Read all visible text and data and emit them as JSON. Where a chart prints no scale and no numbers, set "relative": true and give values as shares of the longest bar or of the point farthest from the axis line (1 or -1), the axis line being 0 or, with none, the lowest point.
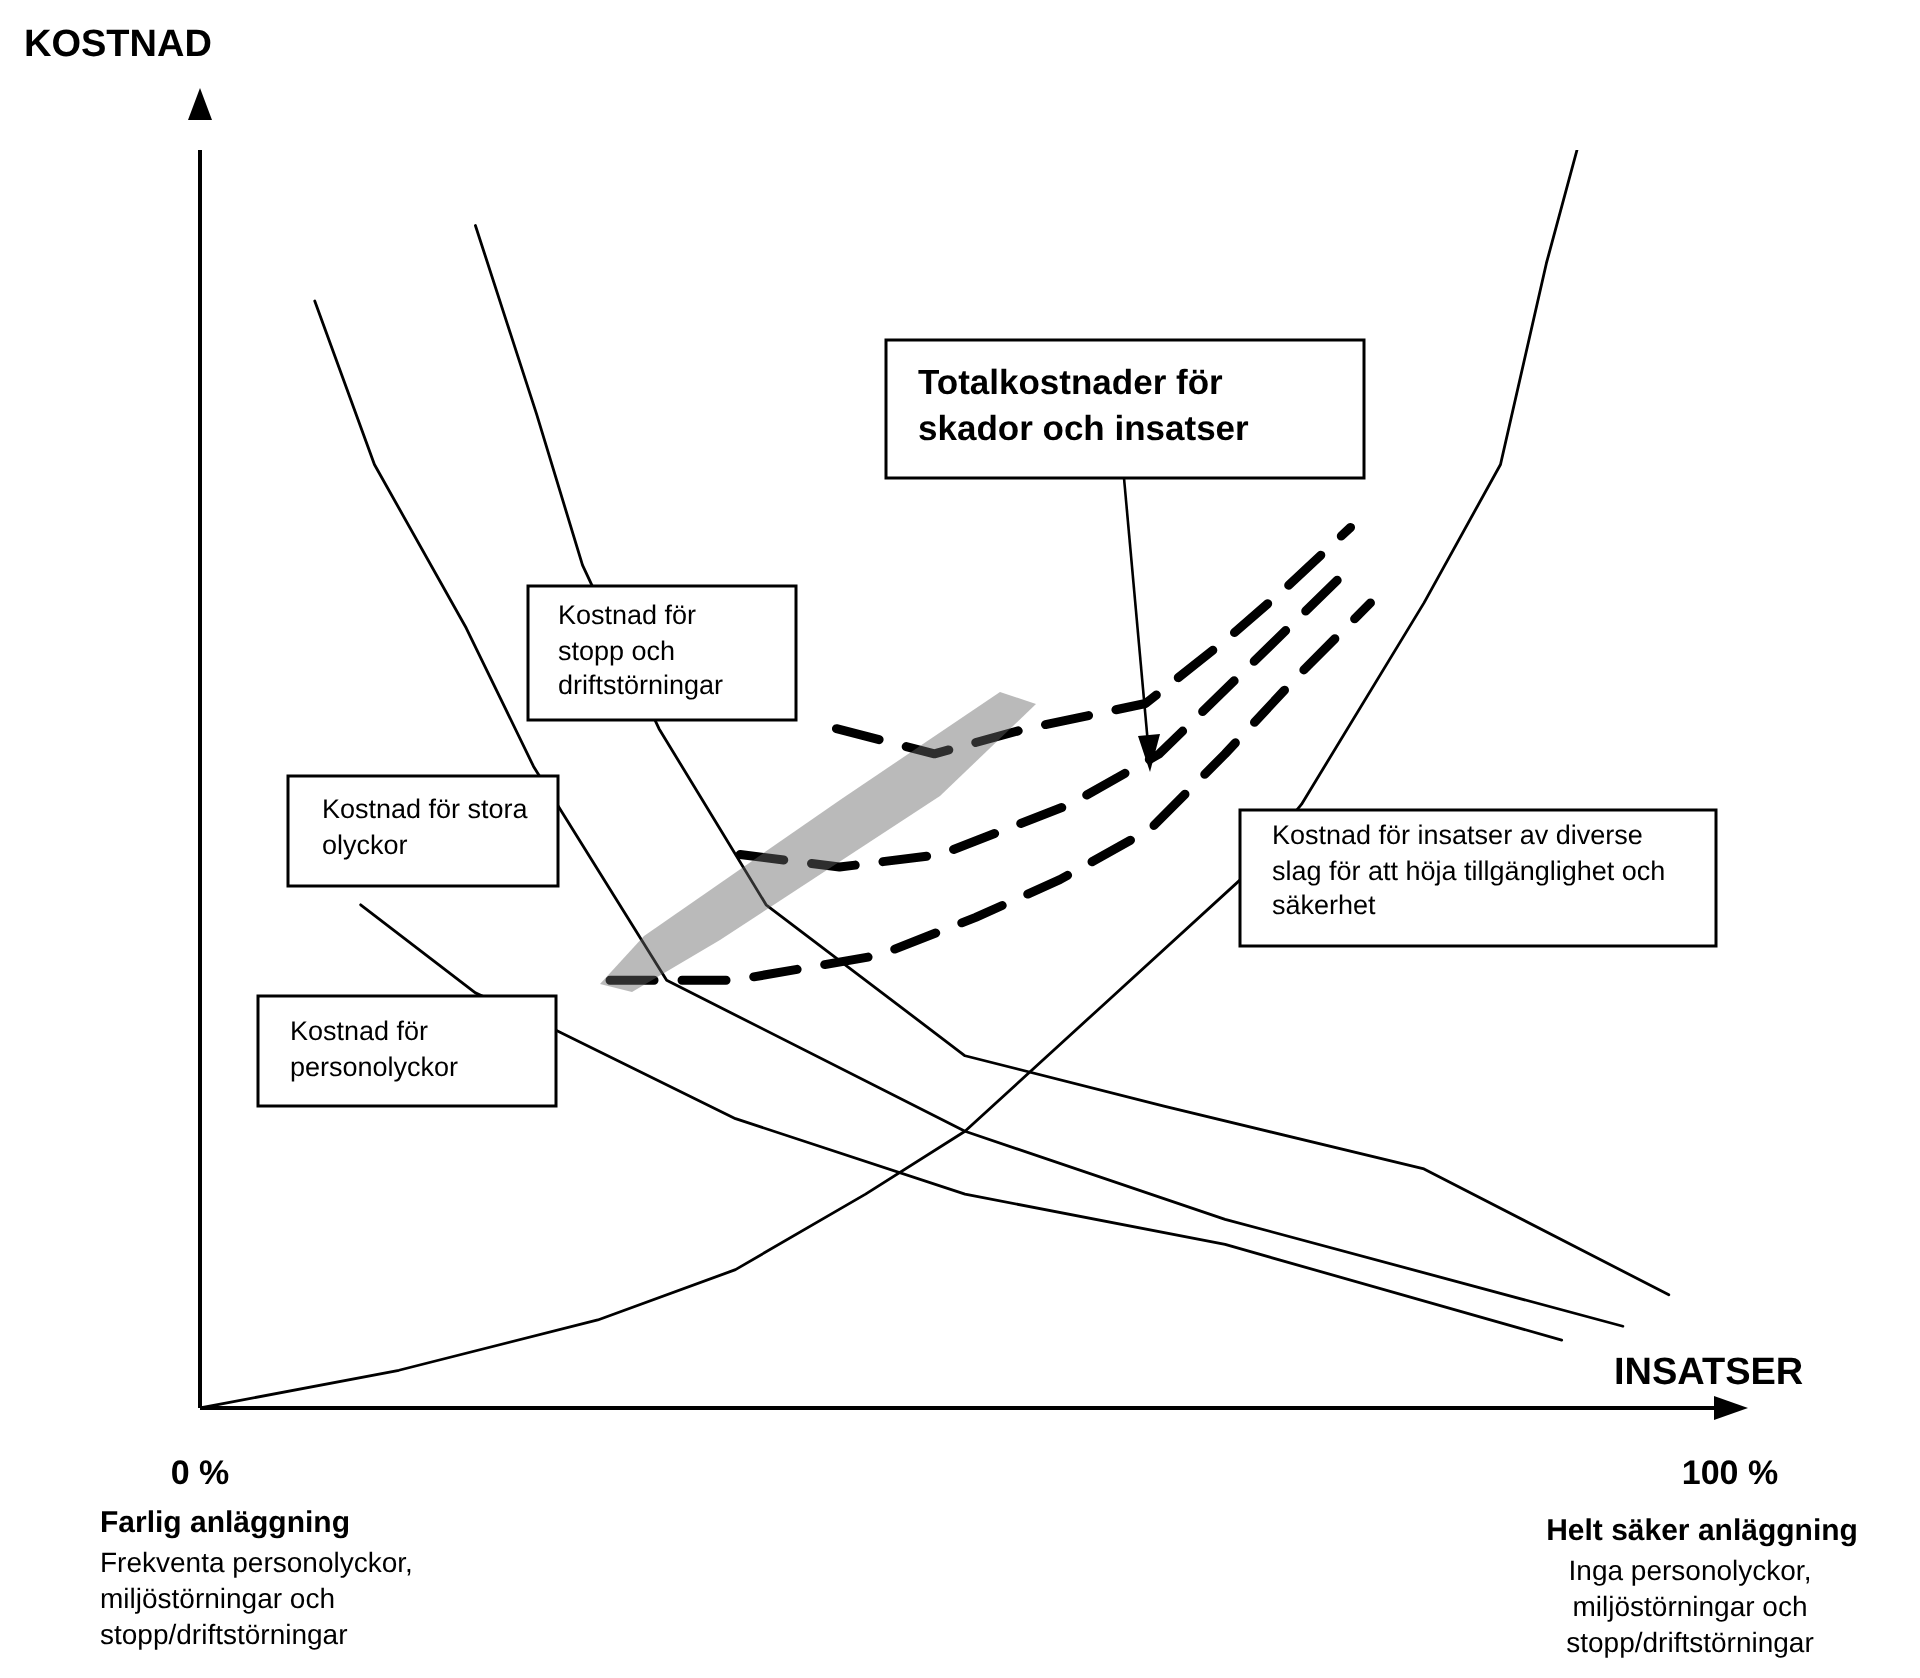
{
  "chart_data": {
    "type": "line",
    "relative": true,
    "xlabel": "INSATSER",
    "ylabel": "KOSTNAD",
    "xlim": [
      0,
      100
    ],
    "xticks": [
      {
        "value": 0,
        "label": "0 %"
      },
      {
        "value": 100,
        "label": "100 %"
      }
    ],
    "grid": false,
    "legend": false,
    "marker": "none",
    "series": [
      {
        "name": "Kostnad för insatser av diverse slag för att höja tillgänglighet och säkerhet",
        "color": "#000000",
        "line_style": "solid",
        "x": [
          0,
          13,
          26,
          35,
          43.5,
          50,
          59,
          68,
          72,
          80,
          85,
          88,
          90
        ],
        "values": [
          0,
          0.03,
          0.07,
          0.11,
          0.17,
          0.22,
          0.32,
          0.42,
          0.48,
          0.64,
          0.75,
          0.91,
          1
        ]
      },
      {
        "name": "Kostnad för stopp och driftstörningar",
        "color": "#000000",
        "line_style": "solid",
        "x": [
          18,
          22,
          25,
          30,
          34,
          37,
          50,
          63,
          80,
          96
        ],
        "values": [
          0.94,
          0.79,
          0.67,
          0.54,
          0.46,
          0.4,
          0.28,
          0.24,
          0.19,
          0.09
        ]
      },
      {
        "name": "Kostnad för stora olyckor",
        "color": "#000000",
        "line_style": "solid",
        "x": [
          7.5,
          11.4,
          17.4,
          21.8,
          30.5,
          50,
          67,
          93
        ],
        "values": [
          0.88,
          0.75,
          0.62,
          0.51,
          0.34,
          0.22,
          0.15,
          0.065
        ]
      },
      {
        "name": "Kostnad för personolyckor",
        "color": "#000000",
        "line_style": "solid",
        "x": [
          10.5,
          18,
          23.3,
          35,
          50,
          67,
          89
        ],
        "values": [
          0.4,
          0.33,
          0.3,
          0.23,
          0.17,
          0.13,
          0.054
        ]
      },
      {
        "name": "Totalkostnader för skador och insatser",
        "color": "#000000",
        "line_style": "dashed",
        "x": [
          41.6,
          48,
          54,
          61.8,
          67,
          70.8,
          75.2
        ],
        "values": [
          0.54,
          0.52,
          0.54,
          0.56,
          0.61,
          0.65,
          0.7
        ]
      },
      {
        "color": "#000000",
        "line_style": "dashed",
        "x": [
          35.3,
          41.8,
          48.4,
          56.9,
          62.7,
          68.6,
          74.5
        ],
        "values": [
          0.44,
          0.43,
          0.44,
          0.48,
          0.52,
          0.59,
          0.66
        ]
      },
      {
        "color": "#000000",
        "line_style": "dashed",
        "x": [
          26.8,
          34.9,
          44.4,
          50.7,
          56.2,
          62.1,
          67,
          71.6,
          76.5
        ],
        "values": [
          0.34,
          0.34,
          0.36,
          0.39,
          0.42,
          0.46,
          0.52,
          0.58,
          0.64
        ]
      }
    ],
    "annotations": [
      "Farlig anläggning",
      "Frekventa personolyckor, miljöstörningar och stopp/driftstörningar",
      "Helt säker anläggning",
      "Inga personolyckor, miljöstörningar och stopp/driftstörningar"
    ]
  }
}
